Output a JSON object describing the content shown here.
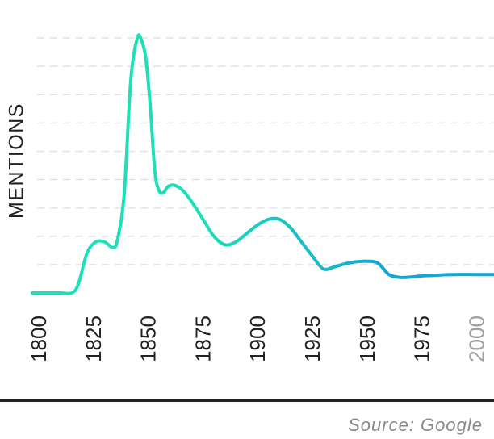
{
  "chart_data": {
    "type": "line",
    "title": "",
    "ylabel": "MENTIONS",
    "xlabel": "",
    "x_ticks": [
      {
        "label": "1800",
        "value": 1800,
        "muted": false
      },
      {
        "label": "1825",
        "value": 1825,
        "muted": false
      },
      {
        "label": "1850",
        "value": 1850,
        "muted": false
      },
      {
        "label": "1875",
        "value": 1875,
        "muted": false
      },
      {
        "label": "1900",
        "value": 1900,
        "muted": false
      },
      {
        "label": "1925",
        "value": 1925,
        "muted": false
      },
      {
        "label": "1950",
        "value": 1950,
        "muted": false
      },
      {
        "label": "1975",
        "value": 1975,
        "muted": false
      },
      {
        "label": "2000",
        "value": 2000,
        "muted": true
      }
    ],
    "xlim": [
      1797,
      2008
    ],
    "ylim": [
      0,
      9
    ],
    "grid": true,
    "grid_style": "dashed",
    "colors": {
      "line_start": "#1ee0b8",
      "line_end": "#12a8d2",
      "grid": "#e2e2e2",
      "tick": "#222222",
      "tick_muted": "#a0a0a0"
    },
    "series": [
      {
        "x": [
          1797,
          1800,
          1805,
          1810,
          1815,
          1818,
          1822,
          1826,
          1830,
          1834,
          1836,
          1839,
          1842,
          1845,
          1847,
          1849,
          1851,
          1853,
          1855,
          1857,
          1859,
          1862,
          1866,
          1870,
          1875,
          1880,
          1885,
          1890,
          1895,
          1900,
          1905,
          1910,
          1915,
          1920,
          1925,
          1930,
          1935,
          1940,
          1945,
          1950,
          1955,
          1960,
          1965,
          1970,
          1975,
          1980,
          1985,
          1990,
          2000,
          2008
        ],
        "y": [
          0,
          0,
          0,
          0,
          0,
          0.3,
          1.4,
          1.8,
          1.8,
          1.6,
          1.9,
          3.5,
          7.5,
          9.0,
          8.9,
          8.2,
          6.5,
          4.3,
          3.6,
          3.55,
          3.75,
          3.8,
          3.6,
          3.2,
          2.6,
          2.0,
          1.7,
          1.8,
          2.1,
          2.4,
          2.6,
          2.6,
          2.3,
          1.8,
          1.3,
          0.85,
          0.92,
          1.03,
          1.1,
          1.12,
          1.05,
          0.65,
          0.55,
          0.56,
          0.6,
          0.62,
          0.64,
          0.65,
          0.65,
          0.65
        ]
      }
    ]
  },
  "source": "Source: Google"
}
